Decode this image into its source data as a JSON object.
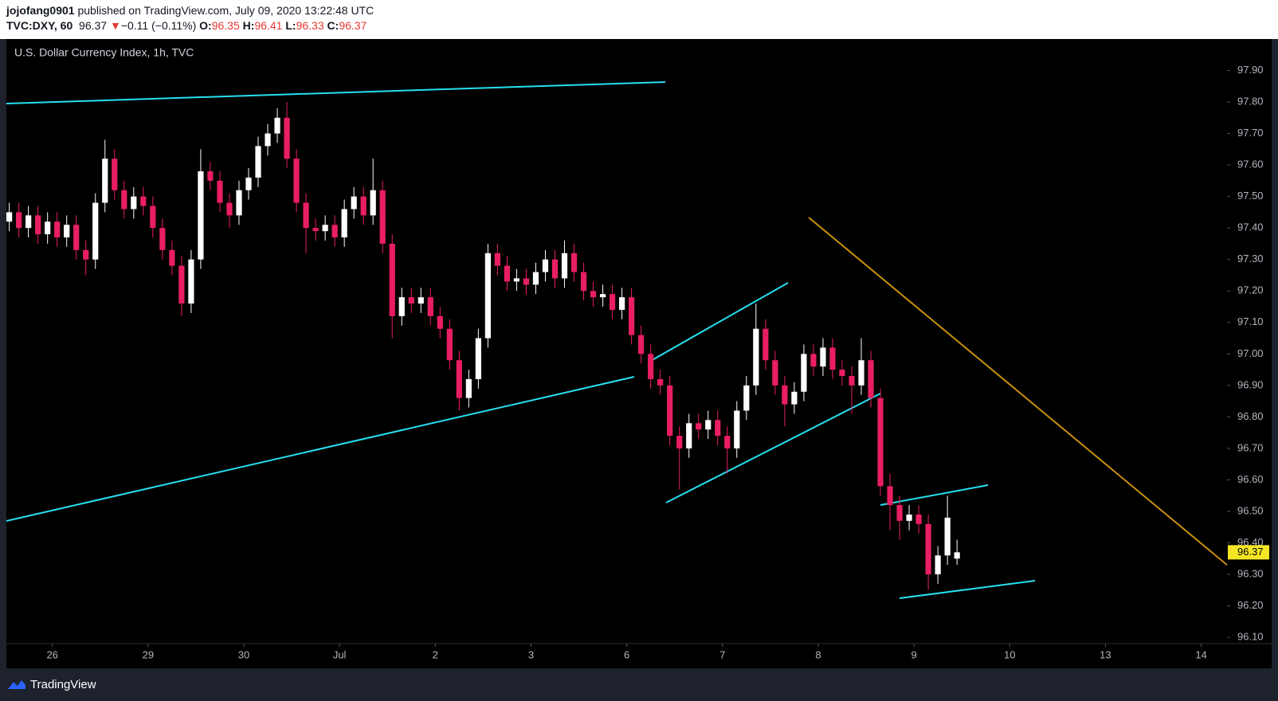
{
  "header": {
    "author": "jojofang0901",
    "published": "published on TradingView.com, July 09, 2020 13:22:48 UTC",
    "symbol": "TVC:DXY, 60",
    "direction": "▼",
    "change": "−0.11 (−0.11%)",
    "o_label": "O:",
    "h_label": "H:",
    "l_label": "L:",
    "c_label": "C:"
  },
  "footer": {
    "brand": "TradingView"
  },
  "chart_data": {
    "type": "candlestick",
    "title": "U.S. Dollar Currency Index, 1h, TVC",
    "up_color": "#ffffff",
    "down_color": "#e91e63",
    "last_price_color": "#f5e625",
    "x": [
      -0.45,
      -0.35,
      -0.25,
      -0.15,
      -0.05,
      0.05,
      0.15,
      0.25,
      0.35,
      0.45,
      0.55,
      0.65,
      0.75,
      0.85,
      0.95,
      1.05,
      1.15,
      1.25,
      1.35,
      1.45,
      1.55,
      1.65,
      1.75,
      1.85,
      1.95,
      2.05,
      2.15,
      2.25,
      2.35,
      2.45,
      2.55,
      2.65,
      2.75,
      2.85,
      2.95,
      3.05,
      3.15,
      3.25,
      3.35,
      3.45,
      3.55,
      3.65,
      3.75,
      3.85,
      3.95,
      4.05,
      4.15,
      4.25,
      4.35,
      4.45,
      4.55,
      4.65,
      4.75,
      4.85,
      4.95,
      5.05,
      5.15,
      5.25,
      5.35,
      5.45,
      5.55,
      5.65,
      5.75,
      5.85,
      5.95,
      6.05,
      6.15,
      6.25,
      6.35,
      6.45,
      6.55,
      6.65,
      6.75,
      6.85,
      6.95,
      7.05,
      7.15,
      7.25,
      7.35,
      7.45,
      7.55,
      7.65,
      7.75,
      7.85,
      7.95,
      8.05,
      8.15,
      8.25,
      8.35,
      8.45,
      8.55,
      8.65,
      8.75,
      8.85,
      8.95,
      9.05,
      9.15,
      9.25,
      9.35,
      9.45
    ],
    "open": [
      97.42,
      97.45,
      97.4,
      97.44,
      97.38,
      97.42,
      97.37,
      97.41,
      97.33,
      97.3,
      97.48,
      97.62,
      97.52,
      97.46,
      97.5,
      97.47,
      97.4,
      97.33,
      97.28,
      97.16,
      97.3,
      97.58,
      97.55,
      97.48,
      97.44,
      97.52,
      97.56,
      97.66,
      97.7,
      97.75,
      97.62,
      97.48,
      97.4,
      97.39,
      97.41,
      97.37,
      97.46,
      97.5,
      97.44,
      97.52,
      97.35,
      97.12,
      97.18,
      97.16,
      97.18,
      97.12,
      97.08,
      96.98,
      96.86,
      96.92,
      97.05,
      97.32,
      97.28,
      97.23,
      97.24,
      97.22,
      97.26,
      97.3,
      97.24,
      97.32,
      97.26,
      97.2,
      97.18,
      97.19,
      97.14,
      97.18,
      97.06,
      97.0,
      96.92,
      96.9,
      96.74,
      96.7,
      96.78,
      96.76,
      96.79,
      96.74,
      96.7,
      96.82,
      96.9,
      97.08,
      96.98,
      96.9,
      96.84,
      96.88,
      97.0,
      96.96,
      97.02,
      96.95,
      96.93,
      96.9,
      96.98,
      96.86,
      96.58,
      96.52,
      96.47,
      96.49,
      96.46,
      96.3,
      96.36,
      96.35
    ],
    "high": [
      97.48,
      97.48,
      97.47,
      97.47,
      97.45,
      97.45,
      97.44,
      97.44,
      97.36,
      97.51,
      97.68,
      97.65,
      97.55,
      97.53,
      97.53,
      97.5,
      97.43,
      97.36,
      97.31,
      97.33,
      97.65,
      97.61,
      97.58,
      97.51,
      97.55,
      97.59,
      97.69,
      97.73,
      97.78,
      97.8,
      97.65,
      97.51,
      97.43,
      97.44,
      97.44,
      97.49,
      97.53,
      97.53,
      97.62,
      97.55,
      97.38,
      97.21,
      97.21,
      97.21,
      97.21,
      97.15,
      97.11,
      97.01,
      96.95,
      97.08,
      97.35,
      97.35,
      97.31,
      97.27,
      97.27,
      97.29,
      97.33,
      97.33,
      97.36,
      97.35,
      97.29,
      97.23,
      97.22,
      97.22,
      97.21,
      97.21,
      97.09,
      97.03,
      96.95,
      96.93,
      96.77,
      96.81,
      96.81,
      96.82,
      96.82,
      96.77,
      96.85,
      96.93,
      97.16,
      97.11,
      97.01,
      96.93,
      96.91,
      97.03,
      97.03,
      97.05,
      97.05,
      96.98,
      96.96,
      97.05,
      97.01,
      96.89,
      96.62,
      96.55,
      96.52,
      96.52,
      96.49,
      96.39,
      96.55,
      96.41
    ],
    "low": [
      97.39,
      97.37,
      97.37,
      97.35,
      97.35,
      97.34,
      97.34,
      97.3,
      97.25,
      97.27,
      97.45,
      97.49,
      97.43,
      97.43,
      97.44,
      97.37,
      97.3,
      97.25,
      97.12,
      97.13,
      97.27,
      97.52,
      97.45,
      97.4,
      97.41,
      97.49,
      97.53,
      97.63,
      97.67,
      97.59,
      97.45,
      97.32,
      97.36,
      97.36,
      97.34,
      97.34,
      97.43,
      97.41,
      97.41,
      97.32,
      97.05,
      97.09,
      97.13,
      97.13,
      97.09,
      97.05,
      96.95,
      96.82,
      96.83,
      96.89,
      97.02,
      97.25,
      97.2,
      97.2,
      97.19,
      97.19,
      97.23,
      97.21,
      97.21,
      97.23,
      97.17,
      97.15,
      97.15,
      97.11,
      97.11,
      97.03,
      96.97,
      96.89,
      96.87,
      96.71,
      96.57,
      96.67,
      96.73,
      96.73,
      96.71,
      96.62,
      96.67,
      96.79,
      96.87,
      96.95,
      96.87,
      96.77,
      96.81,
      96.85,
      96.93,
      96.93,
      96.92,
      96.9,
      96.81,
      96.87,
      96.83,
      96.55,
      96.44,
      96.41,
      96.44,
      96.43,
      96.25,
      96.27,
      96.33,
      96.33
    ],
    "close": [
      97.45,
      97.4,
      97.44,
      97.38,
      97.42,
      97.37,
      97.41,
      97.33,
      97.3,
      97.48,
      97.62,
      97.52,
      97.46,
      97.5,
      97.47,
      97.4,
      97.33,
      97.28,
      97.16,
      97.3,
      97.58,
      97.55,
      97.48,
      97.44,
      97.52,
      97.56,
      97.66,
      97.7,
      97.75,
      97.62,
      97.48,
      97.4,
      97.39,
      97.41,
      97.37,
      97.46,
      97.5,
      97.44,
      97.52,
      97.35,
      97.12,
      97.18,
      97.16,
      97.18,
      97.12,
      97.08,
      96.98,
      96.86,
      96.92,
      97.05,
      97.32,
      97.28,
      97.23,
      97.24,
      97.22,
      97.26,
      97.3,
      97.24,
      97.32,
      97.26,
      97.2,
      97.18,
      97.19,
      97.14,
      97.18,
      97.06,
      97.0,
      96.92,
      96.9,
      96.74,
      96.7,
      96.78,
      96.76,
      96.79,
      96.74,
      96.7,
      96.82,
      96.9,
      97.08,
      96.98,
      96.9,
      96.84,
      96.88,
      97.0,
      96.96,
      97.02,
      96.95,
      96.93,
      96.9,
      96.98,
      96.86,
      96.58,
      96.52,
      96.47,
      96.49,
      96.46,
      96.3,
      96.36,
      96.48,
      96.37
    ],
    "xlim": [
      -0.48,
      12.27
    ],
    "xticks": [
      {
        "value": 0,
        "label": "26"
      },
      {
        "value": 1,
        "label": "29"
      },
      {
        "value": 2,
        "label": "30"
      },
      {
        "value": 3,
        "label": "Jul"
      },
      {
        "value": 4,
        "label": "2"
      },
      {
        "value": 5,
        "label": "3"
      },
      {
        "value": 6,
        "label": "6"
      },
      {
        "value": 7,
        "label": "7"
      },
      {
        "value": 8,
        "label": "8"
      },
      {
        "value": 9,
        "label": "9"
      },
      {
        "value": 10,
        "label": "10"
      },
      {
        "value": 11,
        "label": "13"
      },
      {
        "value": 12,
        "label": "14"
      }
    ],
    "ylim": [
      96.08,
      98.0
    ],
    "yticks": [
      {
        "value": 96.1,
        "label": "96.10"
      },
      {
        "value": 96.2,
        "label": "96.20"
      },
      {
        "value": 96.3,
        "label": "96.30"
      },
      {
        "value": 96.4,
        "label": "96.40"
      },
      {
        "value": 96.5,
        "label": "96.50"
      },
      {
        "value": 96.6,
        "label": "96.60"
      },
      {
        "value": 96.7,
        "label": "96.70"
      },
      {
        "value": 96.8,
        "label": "96.80"
      },
      {
        "value": 96.9,
        "label": "96.90"
      },
      {
        "value": 97.0,
        "label": "97.00"
      },
      {
        "value": 97.1,
        "label": "97.10"
      },
      {
        "value": 97.2,
        "label": "97.20"
      },
      {
        "value": 97.3,
        "label": "97.30"
      },
      {
        "value": 97.4,
        "label": "97.40"
      },
      {
        "value": 97.5,
        "label": "97.50"
      },
      {
        "value": 97.6,
        "label": "97.60"
      },
      {
        "value": 97.7,
        "label": "97.70"
      },
      {
        "value": 97.8,
        "label": "97.80"
      },
      {
        "value": 97.9,
        "label": "97.90"
      }
    ]
  }
}
